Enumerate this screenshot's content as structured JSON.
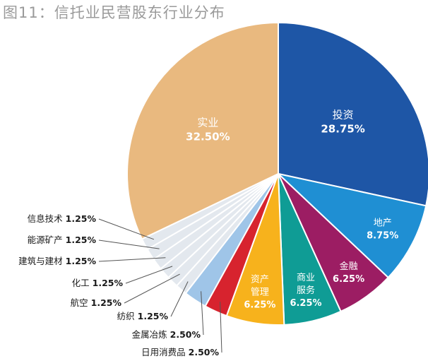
{
  "title": "图11：信托业民营股东行业分布",
  "chart_data": {
    "type": "pie",
    "title": "图11：信托业民营股东行业分布",
    "slices": [
      {
        "label": "投资",
        "value": 28.75,
        "pct_text": "28.75%",
        "color": "#1e56a6",
        "label_color": "#ffffff"
      },
      {
        "label": "地产",
        "value": 8.75,
        "pct_text": "8.75%",
        "color": "#1f8fd3",
        "label_color": "#ffffff"
      },
      {
        "label": "金融",
        "value": 6.25,
        "pct_text": "6.25%",
        "color": "#9c1d63",
        "label_color": "#ffffff"
      },
      {
        "label": "商业服务",
        "value": 6.25,
        "pct_text": "6.25%",
        "color": "#0f9c95",
        "label_color": "#ffffff"
      },
      {
        "label": "资产管理",
        "value": 6.25,
        "pct_text": "6.25%",
        "color": "#f7b21c",
        "label_color": "#ffffff"
      },
      {
        "label": "日用消费品",
        "value": 2.5,
        "pct_text": "2.50%",
        "color": "#d7232e",
        "label_color": "#1a1a1a"
      },
      {
        "label": "金属冶炼",
        "value": 2.5,
        "pct_text": "2.50%",
        "color": "#9fc5e8",
        "label_color": "#1a1a1a"
      },
      {
        "label": "纺织",
        "value": 1.25,
        "pct_text": "1.25%",
        "color": "#e3e8ee",
        "label_color": "#1a1a1a"
      },
      {
        "label": "航空",
        "value": 1.25,
        "pct_text": "1.25%",
        "color": "#e3e8ee",
        "label_color": "#1a1a1a"
      },
      {
        "label": "化工",
        "value": 1.25,
        "pct_text": "1.25%",
        "color": "#e3e8ee",
        "label_color": "#1a1a1a"
      },
      {
        "label": "建筑与建材",
        "value": 1.25,
        "pct_text": "1.25%",
        "color": "#e3e8ee",
        "label_color": "#1a1a1a"
      },
      {
        "label": "能源矿产",
        "value": 1.25,
        "pct_text": "1.25%",
        "color": "#e3e8ee",
        "label_color": "#1a1a1a"
      },
      {
        "label": "信息技术",
        "value": 1.25,
        "pct_text": "1.25%",
        "color": "#e3e8ee",
        "label_color": "#1a1a1a"
      },
      {
        "label": "实业",
        "value": 32.5,
        "pct_text": "32.50%",
        "color": "#e9b97f",
        "label_color": "#ffffff"
      }
    ]
  }
}
